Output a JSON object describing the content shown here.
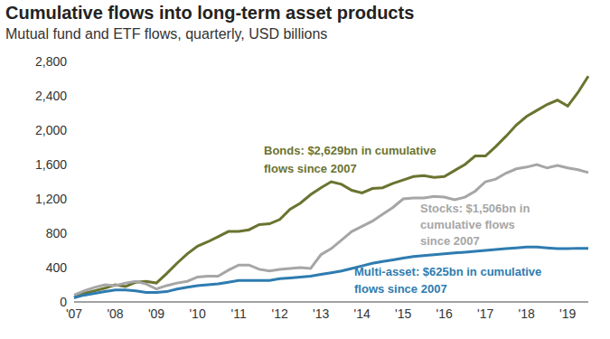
{
  "chart_data": {
    "type": "line",
    "title": "Cumulative flows into long-term asset products",
    "subtitle": "Mutual fund and ETF flows, quarterly, USD billions",
    "categories": [
      "'07",
      null,
      null,
      null,
      "'08",
      null,
      null,
      null,
      "'09",
      null,
      null,
      null,
      "'10",
      null,
      null,
      null,
      "'11",
      null,
      null,
      null,
      "'12",
      null,
      null,
      null,
      "'13",
      null,
      null,
      null,
      "'14",
      null,
      null,
      null,
      "'15",
      null,
      null,
      null,
      "'16",
      null,
      null,
      null,
      "'17",
      null,
      null,
      null,
      "'18",
      null,
      null,
      null,
      "'19",
      null,
      null
    ],
    "ylim": [
      0,
      2800
    ],
    "yticks": [
      0,
      400,
      800,
      {
        "value": 1200,
        "label": "1,200"
      },
      {
        "value": 1600,
        "label": "1,600"
      },
      {
        "value": 2000,
        "label": "2,000"
      },
      {
        "value": 2400,
        "label": "2,400"
      },
      {
        "value": 2800,
        "label": "2,800"
      }
    ],
    "grid": false,
    "series": [
      {
        "name": "Bonds",
        "color": "#6b7330",
        "annotation": [
          "Bonds: $2,629bn in cumulative",
          "flows since 2007"
        ],
        "values": [
          50,
          100,
          130,
          160,
          200,
          180,
          230,
          240,
          220,
          330,
          450,
          560,
          650,
          700,
          760,
          820,
          820,
          840,
          900,
          910,
          960,
          1080,
          1150,
          1250,
          1330,
          1400,
          1370,
          1300,
          1270,
          1320,
          1330,
          1380,
          1420,
          1460,
          1470,
          1450,
          1460,
          1530,
          1600,
          1700,
          1700,
          1810,
          1930,
          2060,
          2160,
          2230,
          2300,
          2350,
          2280,
          2440,
          2629
        ]
      },
      {
        "name": "Stocks",
        "color": "#a6a6a6",
        "annotation": [
          "Stocks: $1,506bn in",
          "cumulative flows",
          "since 2007"
        ],
        "values": [
          80,
          130,
          170,
          200,
          190,
          220,
          240,
          210,
          150,
          190,
          220,
          240,
          290,
          300,
          300,
          370,
          430,
          430,
          380,
          360,
          380,
          390,
          400,
          390,
          550,
          620,
          720,
          820,
          880,
          940,
          1020,
          1100,
          1200,
          1210,
          1210,
          1230,
          1220,
          1190,
          1220,
          1290,
          1400,
          1430,
          1500,
          1550,
          1570,
          1600,
          1560,
          1590,
          1560,
          1540,
          1506
        ]
      },
      {
        "name": "Multi-asset",
        "color": "#2e7cb0",
        "annotation": [
          "Multi-asset: $625bn in cumulative",
          "flows since 2007"
        ],
        "values": [
          50,
          80,
          100,
          120,
          140,
          140,
          130,
          110,
          110,
          120,
          150,
          170,
          190,
          200,
          210,
          230,
          250,
          250,
          250,
          250,
          270,
          280,
          290,
          300,
          320,
          340,
          360,
          390,
          420,
          450,
          470,
          490,
          510,
          530,
          540,
          550,
          560,
          570,
          580,
          590,
          600,
          610,
          620,
          630,
          640,
          640,
          630,
          620,
          620,
          625,
          625
        ]
      }
    ]
  }
}
